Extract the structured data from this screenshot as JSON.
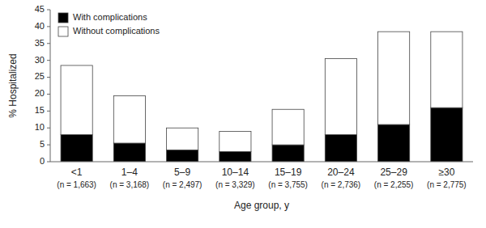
{
  "chart_data": {
    "type": "bar",
    "stacked": true,
    "categories": [
      "<1",
      "1–4",
      "5–9",
      "10–14",
      "15–19",
      "20–24",
      "25–29",
      "≥30"
    ],
    "sample_sizes": [
      "(n = 1,663)",
      "(n = 3,168)",
      "(n = 2,497)",
      "(n = 3,329)",
      "(n = 3,755)",
      "(n = 2,736)",
      "(n = 2,255)",
      "(n = 2,775)"
    ],
    "series": [
      {
        "name": "With complications",
        "color": "#000000",
        "values": [
          8.0,
          5.5,
          3.5,
          3.0,
          5.0,
          8.0,
          11.0,
          16.0
        ]
      },
      {
        "name": "Without complications",
        "color": "#ffffff",
        "values": [
          20.5,
          14.0,
          6.5,
          6.0,
          10.5,
          22.5,
          27.5,
          22.5
        ]
      }
    ],
    "xlabel": "Age group, y",
    "ylabel": "% Hospitalized",
    "ylim": [
      0,
      45
    ],
    "yticks": [
      0,
      5,
      10,
      15,
      20,
      25,
      30,
      35,
      40,
      45
    ],
    "legend": "upper left",
    "grid": false
  }
}
